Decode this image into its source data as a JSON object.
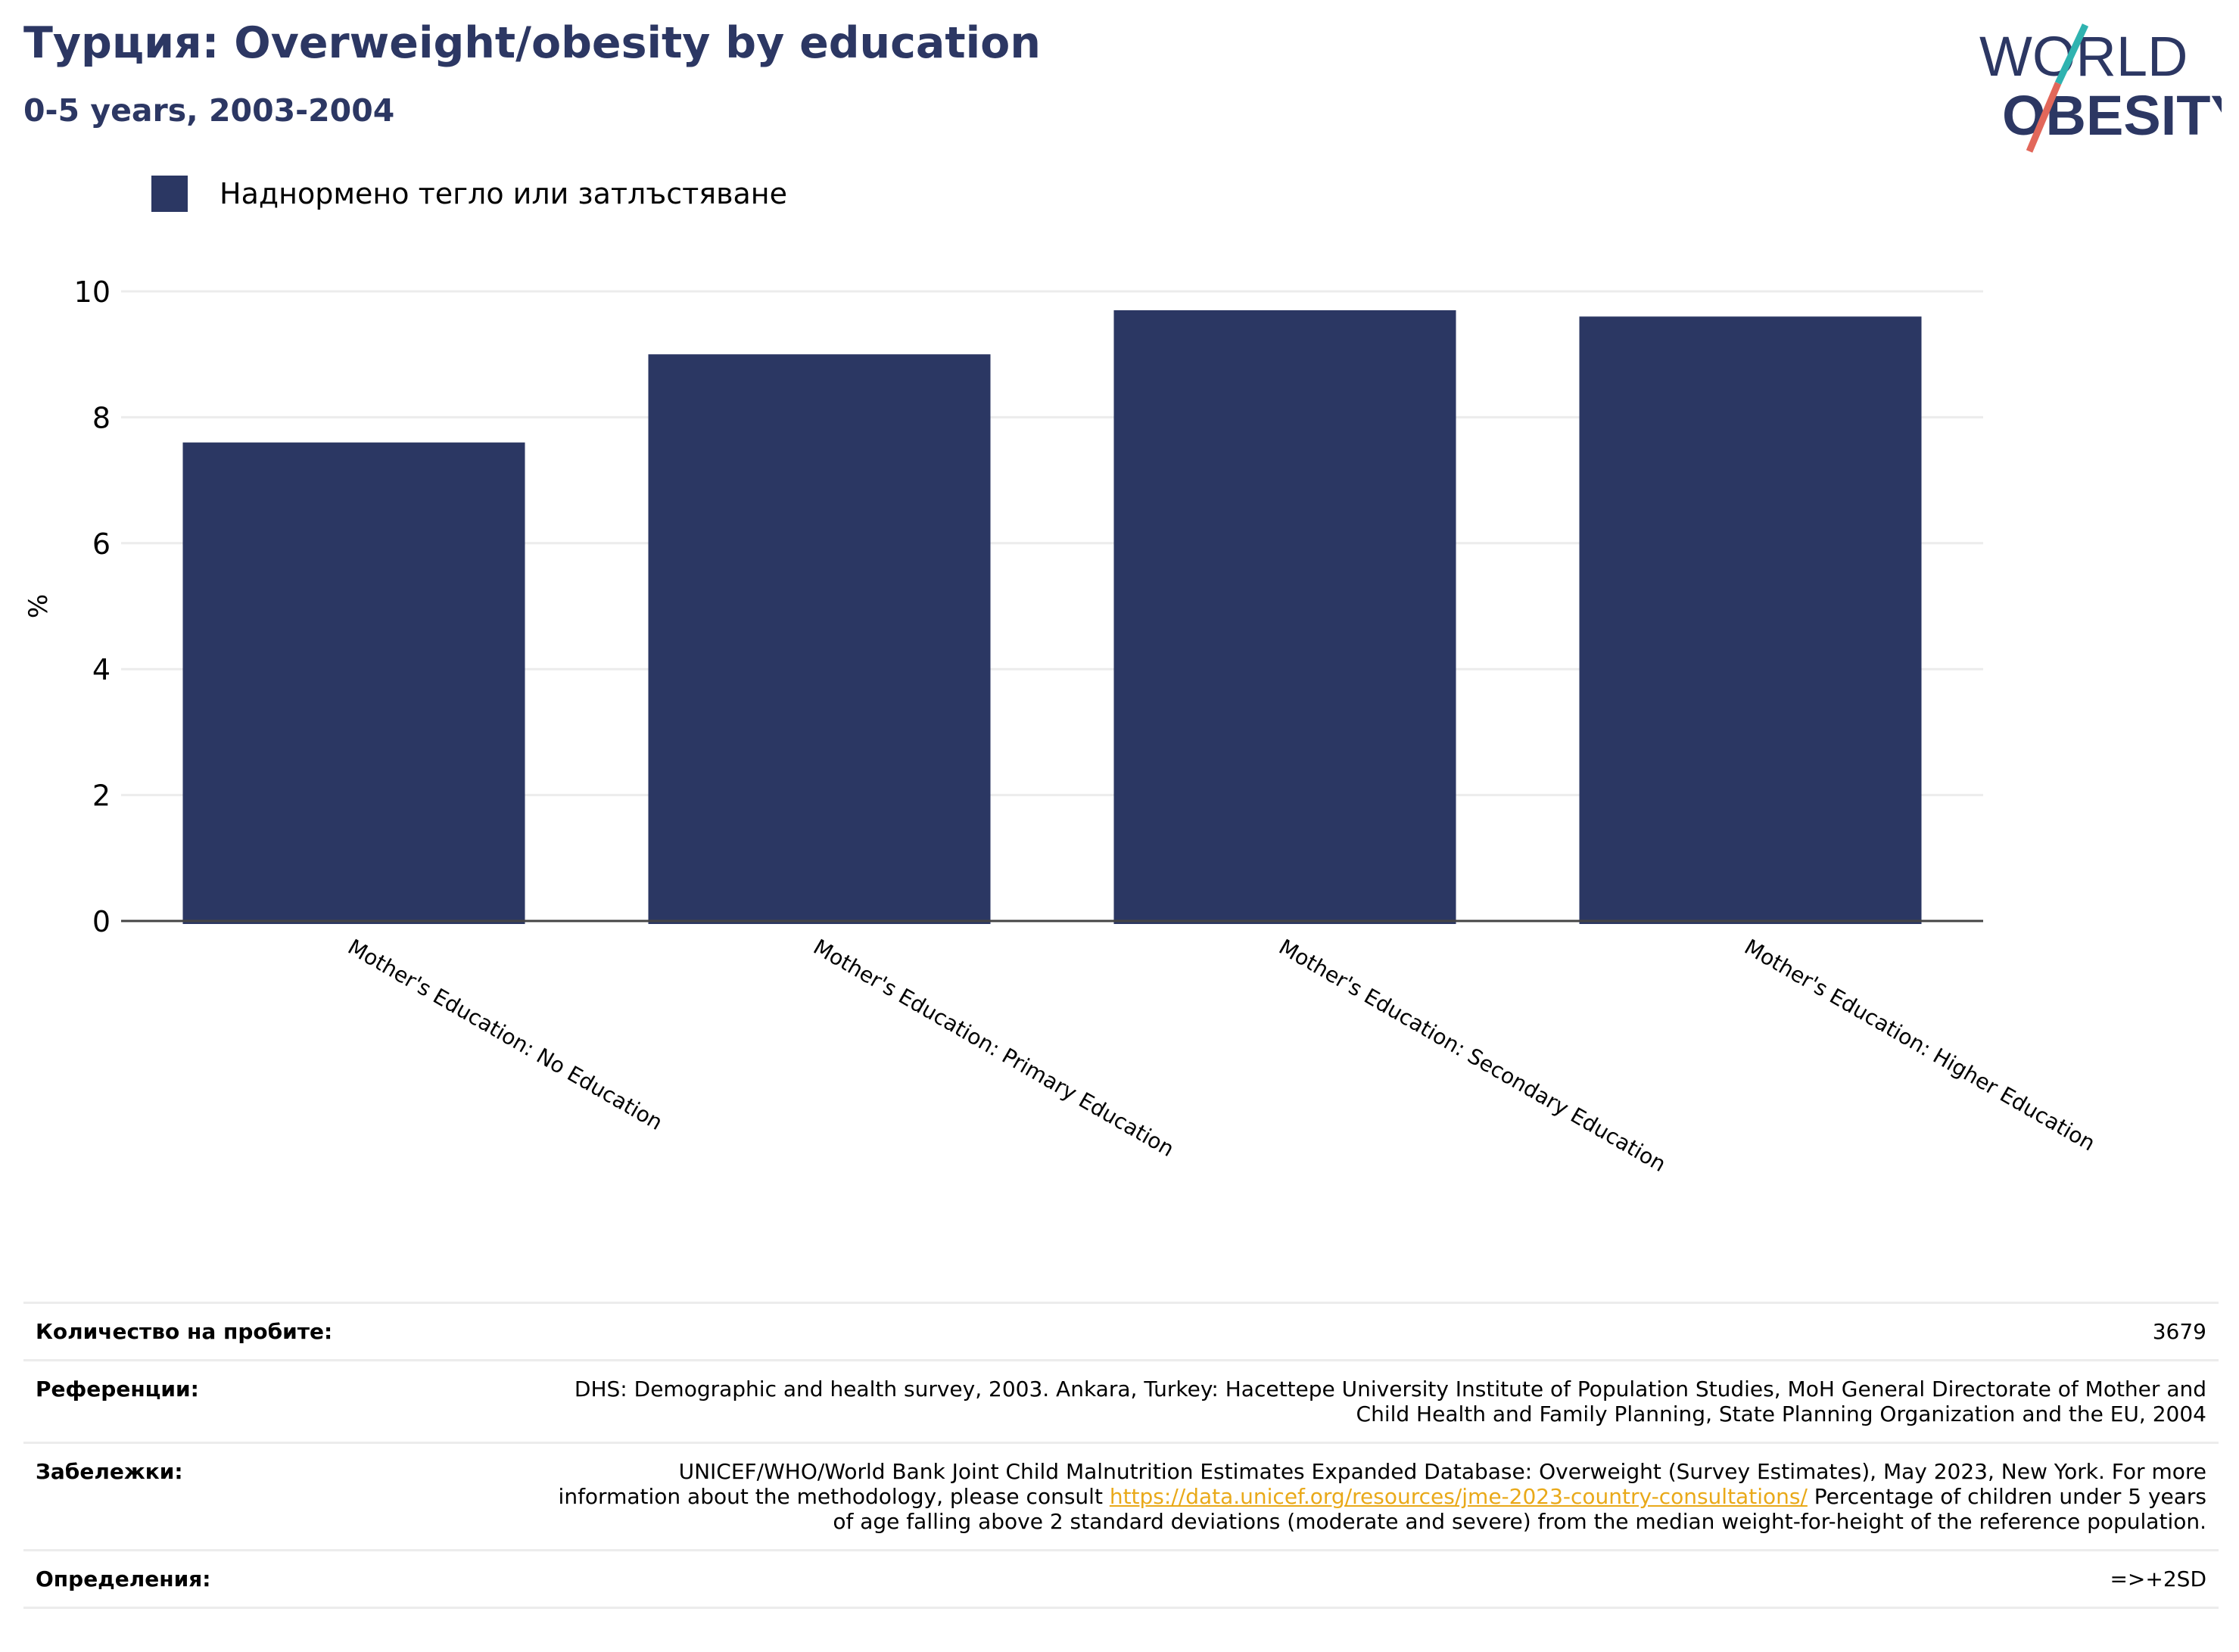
{
  "header": {
    "title": "Турция: Overweight/obesity by education",
    "subtitle": "0-5 years, 2003-2004"
  },
  "logo": {
    "line1": "WORLD",
    "line2": "OBESITY"
  },
  "legend": {
    "label": "Наднормено тегло или затлъстяване"
  },
  "colors": {
    "bar": "#2b3763",
    "title": "#2c3763",
    "link": "#e9a919",
    "logo_teal": "#2fb3b0",
    "logo_coral": "#e2675a"
  },
  "chart_data": {
    "type": "bar",
    "categories": [
      "Mother's Education: No Education",
      "Mother's Education: Primary Education",
      "Mother's Education: Secondary Education",
      "Mother's Education: Higher Education"
    ],
    "series": [
      {
        "name": "Наднормено тегло или затлъстяване",
        "values": [
          7.6,
          9.0,
          9.7,
          9.6
        ]
      }
    ],
    "ylabel": "%",
    "ylim": [
      0,
      10
    ],
    "yticks": [
      0,
      2,
      4,
      6,
      8,
      10
    ],
    "grid": true,
    "legend": "top-left"
  },
  "info": {
    "sample_size": {
      "label": "Количество на пробите:",
      "value": "3679"
    },
    "references": {
      "label": "Референции:",
      "value": "DHS: Demographic and health survey, 2003. Ankara, Turkey: Hacettepe University Institute of Population Studies, MoH General Directorate of Mother and Child Health and Family Planning, State Planning Organization and the EU, 2004"
    },
    "notes": {
      "label": "Забележки:",
      "before": "UNICEF/WHO/World Bank Joint Child Malnutrition Estimates Expanded Database: Overweight (Survey Estimates), May 2023, New York. For more information about the methodology, please consult ",
      "link": "https://data.unicef.org/resources/jme-2023-country-consultations/",
      "after": " Percentage of children under 5 years of age falling above 2 standard deviations (moderate and severe) from the median weight-for-height of the reference population."
    },
    "definitions": {
      "label": "Определения:",
      "value": "=>+2SD"
    }
  }
}
